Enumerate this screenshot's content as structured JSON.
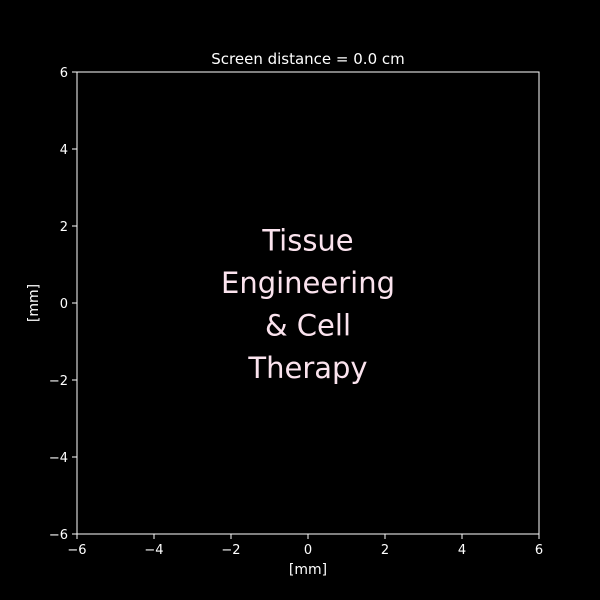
{
  "chart_data": {
    "type": "heatmap",
    "title": "Screen distance = 0.0 cm",
    "xlabel": "[mm]",
    "ylabel": "[mm]",
    "xlim": [
      -6,
      6
    ],
    "ylim": [
      -6,
      6
    ],
    "x_ticks": [
      -6,
      -4,
      -2,
      0,
      2,
      4,
      6
    ],
    "y_ticks": [
      -6,
      -4,
      -2,
      0,
      2,
      4,
      6
    ],
    "x_tick_labels": [
      "−6",
      "−4",
      "−2",
      "0",
      "2",
      "4",
      "6"
    ],
    "y_tick_labels": [
      "−6",
      "−4",
      "−2",
      "0",
      "2",
      "4",
      "6"
    ],
    "grid": false,
    "image_text_lines": [
      "Tissue",
      "Engineering",
      "& Cell",
      "Therapy"
    ],
    "image_text_center": [
      0,
      0
    ],
    "colors": {
      "background": "#000000",
      "axes": "#ffffff",
      "image_text": "#fbe3ee"
    }
  }
}
